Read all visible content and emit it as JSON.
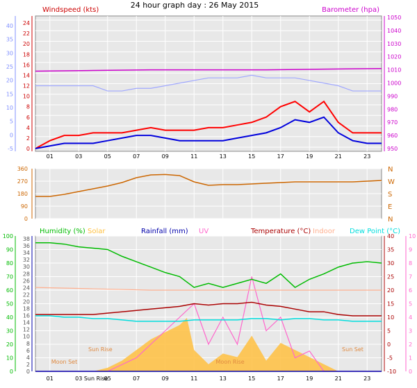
{
  "title": "24 hour graph day : 26 May 2015",
  "colors": {
    "wind": "#ff0000",
    "gust_bg": "#a0a8ff",
    "avg_wind": "#0000dd",
    "baro": "#cc00cc",
    "baro_axis": "#cc00cc",
    "left_wind_axis": "#cc0000",
    "left_kmh_axis": "#8090ff",
    "dir": "#cc6600",
    "humidity": "#00bb00",
    "solar": "#ffc040",
    "rain": "#0000aa",
    "uv": "#ff66cc",
    "temp": "#aa0000",
    "indoor": "#ffb090",
    "dew": "#00dddd",
    "plot_bg": "#e8e8e8"
  },
  "chart_data": [
    {
      "type": "line",
      "title": "Windspeed (kts)",
      "right_label": "Barometer (hpa)",
      "x_ticks": [
        "01",
        "03",
        "05",
        "07",
        "09",
        "11",
        "13",
        "15",
        "17",
        "19",
        "21",
        "23"
      ],
      "x_range": [
        0,
        24
      ],
      "left_ticks": [
        "0",
        "2",
        "4",
        "6",
        "8",
        "10",
        "12",
        "14",
        "16",
        "18",
        "20",
        "22",
        "24"
      ],
      "left_ylim": [
        0,
        24
      ],
      "outer_left_ticks": [
        "-5",
        "0",
        "5",
        "10",
        "15",
        "20",
        "25",
        "30",
        "35",
        "40"
      ],
      "inner_left_ticks": [
        "-1",
        "-0",
        "1",
        "2",
        "3",
        "4",
        "5",
        "6",
        "8",
        "10",
        "12",
        "14",
        "16",
        "18",
        "20",
        "22",
        "24"
      ],
      "right_ticks": [
        "950",
        "960",
        "970",
        "980",
        "990",
        "1000",
        "1010",
        "1020",
        "1030",
        "1040",
        "1050"
      ],
      "right_ylim": [
        950,
        1050
      ],
      "series": [
        {
          "key": "gust",
          "x": [
            0,
            1,
            2,
            3,
            4,
            5,
            6,
            7,
            8,
            9,
            10,
            11,
            12,
            13,
            14,
            15,
            16,
            17,
            18,
            19,
            20,
            21,
            22,
            23,
            24
          ],
          "values": [
            12,
            12,
            12,
            12,
            12,
            11,
            11,
            11.5,
            11.5,
            12,
            12.5,
            13,
            13.5,
            13.5,
            13.5,
            14,
            13.5,
            13.5,
            13.5,
            13,
            12.5,
            12,
            11,
            11,
            11
          ]
        },
        {
          "key": "wind",
          "x": [
            0,
            1,
            2,
            3,
            4,
            5,
            6,
            7,
            8,
            9,
            10,
            11,
            12,
            13,
            14,
            15,
            16,
            17,
            18,
            19,
            20,
            21,
            22,
            23,
            24
          ],
          "values": [
            0,
            1.5,
            2.5,
            2.5,
            3,
            3,
            3,
            3.5,
            4,
            3.5,
            3.5,
            3.5,
            4,
            4,
            4.5,
            5,
            6,
            8,
            9,
            7,
            9,
            5,
            3,
            3,
            3
          ]
        },
        {
          "key": "avg",
          "x": [
            0,
            1,
            2,
            3,
            4,
            5,
            6,
            7,
            8,
            9,
            10,
            11,
            12,
            13,
            14,
            15,
            16,
            17,
            18,
            19,
            20,
            21,
            22,
            23,
            24
          ],
          "values": [
            0,
            0.5,
            1,
            1,
            1,
            1.5,
            2,
            2.5,
            2.5,
            2,
            1.5,
            1.5,
            1.5,
            1.5,
            2,
            2.5,
            3,
            4,
            5.5,
            5,
            6,
            3,
            1.5,
            1,
            1
          ]
        },
        {
          "key": "baro",
          "x": [
            0,
            4,
            8,
            12,
            16,
            20,
            24
          ],
          "values": [
            1009,
            1009.5,
            1010,
            1010,
            1010,
            1010.5,
            1011
          ]
        }
      ]
    },
    {
      "type": "line",
      "title": "Wind Direction",
      "left_ticks": [
        "0",
        "90",
        "180",
        "270",
        "360"
      ],
      "ylim": [
        0,
        360
      ],
      "right_labels": [
        "N",
        "W",
        "S",
        "E",
        "N"
      ],
      "series": [
        {
          "key": "dir",
          "x": [
            0,
            1,
            2,
            3,
            4,
            5,
            6,
            7,
            7.5,
            8,
            9,
            10,
            11,
            12,
            13,
            14,
            15,
            16,
            17,
            18,
            19,
            20,
            21,
            22,
            23,
            24
          ],
          "values": [
            160,
            160,
            175,
            195,
            215,
            235,
            260,
            295,
            305,
            315,
            318,
            310,
            265,
            240,
            245,
            245,
            250,
            255,
            260,
            265,
            265,
            265,
            265,
            265,
            270,
            275
          ]
        }
      ]
    },
    {
      "type": "line",
      "legend": [
        "Humidity (%)",
        "Solar",
        "Rainfall (mm)",
        "UV",
        "Temperature (°C)",
        "Indoor",
        "Dew Point (°C)"
      ],
      "left_humidity_ticks": [
        "0",
        "10",
        "20",
        "30",
        "40",
        "50",
        "60",
        "70",
        "80",
        "90",
        "100"
      ],
      "left_rain_ticks": [
        "0",
        "2",
        "4",
        "6",
        "8",
        "10",
        "12",
        "14",
        "16",
        "18",
        "20",
        "22",
        "24",
        "26",
        "28",
        "30",
        "32",
        "34",
        "36",
        "38"
      ],
      "right_temp_ticks": [
        "-10",
        "-5",
        "0",
        "5",
        "10",
        "15",
        "20",
        "25",
        "30",
        "35",
        "40"
      ],
      "right_uv_ticks": [
        "0",
        "1",
        "2",
        "3",
        "4",
        "5",
        "6",
        "7",
        "8",
        "9",
        "10"
      ],
      "temp_ylim": [
        -10,
        40
      ],
      "annotations": [
        "Moon Set",
        "Sun Rise",
        "Moon Rise",
        "Sun Set"
      ],
      "x_ticks": [
        "01",
        "03",
        "Sun Rise",
        "05",
        "07",
        "09",
        "11",
        "13",
        "15",
        "17",
        "19",
        "21",
        "23"
      ],
      "series": [
        {
          "key": "humidity",
          "x": [
            0,
            1,
            2,
            3,
            4,
            5,
            6,
            7,
            8,
            9,
            10,
            11,
            12,
            13,
            14,
            15,
            16,
            17,
            18,
            19,
            20,
            21,
            22,
            23,
            24
          ],
          "values": [
            95,
            95,
            94,
            92,
            91,
            90,
            85,
            81,
            77,
            73,
            70,
            62,
            65,
            62,
            65,
            68,
            65,
            72,
            62,
            68,
            72,
            77,
            80,
            81,
            80
          ]
        },
        {
          "key": "temp",
          "x": [
            0,
            1,
            2,
            3,
            4,
            5,
            6,
            7,
            8,
            9,
            10,
            11,
            12,
            13,
            14,
            15,
            16,
            17,
            18,
            19,
            20,
            21,
            22,
            23,
            24
          ],
          "values": [
            11,
            11,
            11,
            11,
            11,
            11.5,
            12,
            12.5,
            13,
            13.5,
            14,
            15,
            14.5,
            15,
            15,
            15.5,
            14.5,
            14,
            13,
            12,
            12,
            11,
            10.5,
            10.5,
            10.5
          ]
        },
        {
          "key": "dew",
          "x": [
            0,
            1,
            2,
            3,
            4,
            5,
            6,
            7,
            8,
            9,
            10,
            11,
            12,
            13,
            14,
            15,
            16,
            17,
            18,
            19,
            20,
            21,
            22,
            23,
            24
          ],
          "values": [
            10.5,
            10.5,
            10,
            10,
            9.5,
            9.5,
            9,
            8.5,
            8.5,
            8.5,
            8.5,
            9,
            9,
            9,
            9,
            9.5,
            9.5,
            9,
            9.5,
            9.5,
            9,
            9,
            8.5,
            8.5,
            8.5
          ]
        },
        {
          "key": "indoor",
          "x": [
            0,
            4,
            8,
            12,
            16,
            20,
            24
          ],
          "values": [
            21,
            20.5,
            20,
            20,
            20,
            20,
            20
          ]
        },
        {
          "key": "solar",
          "x": [
            0,
            4,
            5,
            6,
            7,
            8,
            9,
            10,
            10.5,
            11,
            12,
            13,
            14,
            15,
            16,
            17,
            18,
            19,
            20,
            21,
            22,
            23,
            24
          ],
          "values": [
            0,
            0,
            1,
            3,
            6,
            9,
            11,
            13,
            15,
            6,
            2,
            5,
            4,
            10,
            3,
            8,
            6,
            4,
            2,
            0,
            0,
            0,
            0
          ]
        },
        {
          "key": "uv",
          "x": [
            0,
            5,
            6,
            7,
            8,
            9,
            10,
            11,
            12,
            13,
            14,
            15,
            16,
            17,
            18,
            19,
            20,
            21,
            24
          ],
          "values": [
            0,
            0,
            0.5,
            1,
            2,
            3,
            4,
            5,
            2,
            4,
            2,
            7,
            3,
            4,
            1,
            1.5,
            0,
            0,
            0
          ]
        },
        {
          "key": "rain",
          "x": [
            0,
            24
          ],
          "values": [
            0,
            0
          ]
        }
      ]
    }
  ]
}
